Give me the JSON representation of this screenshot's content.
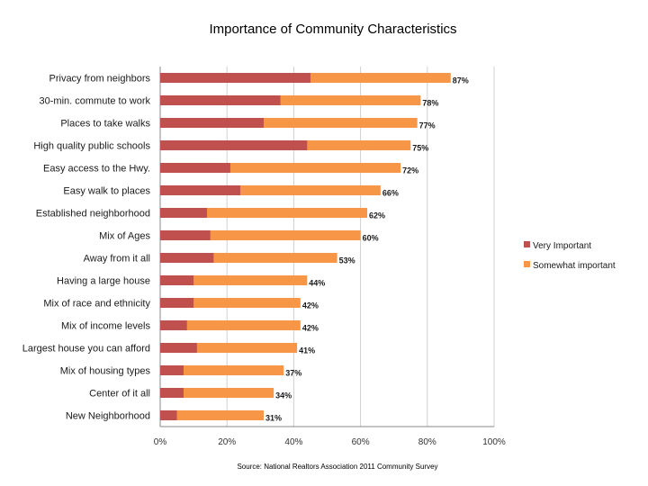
{
  "chart_data": {
    "type": "bar",
    "orientation": "horizontal",
    "stacked": false,
    "overlaid": true,
    "title": "Importance of Community Characteristics",
    "source": "Source: National Realtors Association 2011 Community Survey",
    "categories": [
      "Privacy from neighbors",
      "30-min. commute to work",
      "Places to take walks",
      "High quality public schools",
      "Easy access to the Hwy.",
      "Easy walk to places",
      "Established neighborhood",
      "Mix of Ages",
      "Away from it all",
      "Having a large house",
      "Mix of race and ethnicity",
      "Mix of income levels",
      "Largest house you can afford",
      "Mix of housing types",
      "Center of it all",
      "New Neighborhood"
    ],
    "series": [
      {
        "name": "Very Important",
        "color": "#c0504d",
        "values": [
          45,
          36,
          31,
          44,
          21,
          24,
          14,
          15,
          16,
          10,
          10,
          8,
          11,
          7,
          7,
          5
        ]
      },
      {
        "name": "Somewhat important",
        "color": "#f79646",
        "values": [
          87,
          78,
          77,
          75,
          72,
          66,
          62,
          60,
          53,
          44,
          42,
          42,
          41,
          37,
          34,
          31
        ]
      }
    ],
    "data_labels": [
      "87%",
      "78%",
      "77%",
      "75%",
      "72%",
      "66%",
      "62%",
      "60%",
      "53%",
      "44%",
      "42%",
      "42%",
      "41%",
      "37%",
      "34%",
      "31%"
    ],
    "xlim": [
      0,
      100
    ],
    "xticks": [
      "0%",
      "20%",
      "40%",
      "60%",
      "80%",
      "100%"
    ],
    "xtick_values": [
      0,
      20,
      40,
      60,
      80,
      100
    ],
    "grid": true,
    "legend_position": "right"
  }
}
